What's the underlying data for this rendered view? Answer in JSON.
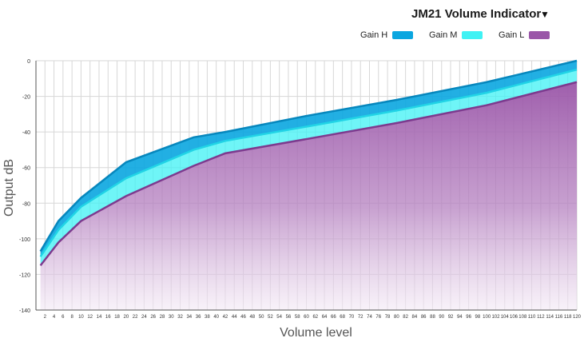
{
  "chart_data": {
    "type": "area",
    "title": "JM21 Volume Indicator",
    "xlabel": "Volume level",
    "ylabel": "Output dB",
    "xlim": [
      0,
      120
    ],
    "ylim": [
      -140,
      0
    ],
    "x_ticks": [
      2,
      4,
      6,
      8,
      10,
      12,
      14,
      16,
      18,
      20,
      22,
      24,
      26,
      28,
      30,
      32,
      34,
      36,
      38,
      40,
      42,
      44,
      46,
      48,
      50,
      52,
      54,
      56,
      58,
      60,
      62,
      64,
      66,
      68,
      70,
      72,
      74,
      76,
      78,
      80,
      82,
      84,
      86,
      88,
      90,
      92,
      94,
      96,
      98,
      100,
      102,
      104,
      106,
      108,
      110,
      112,
      114,
      116,
      118,
      120
    ],
    "y_ticks": [
      0,
      -20,
      -40,
      -60,
      -80,
      -100,
      -120,
      -140
    ],
    "grid": true,
    "legend_position": "top-right",
    "x": [
      1,
      5,
      10,
      20,
      35,
      42,
      60,
      80,
      100,
      120
    ],
    "series": [
      {
        "name": "Gain H",
        "color": "#0aa6e0",
        "values": [
          -107,
          -90,
          -77,
          -57,
          -43,
          -40,
          -31,
          -22,
          -12,
          0
        ]
      },
      {
        "name": "Gain M",
        "color": "#3ff2f4",
        "values": [
          -110,
          -95,
          -82,
          -66,
          -50,
          -45,
          -37,
          -28,
          -18,
          -5
        ]
      },
      {
        "name": "Gain L",
        "color": "#9a56a8",
        "values": [
          -115,
          -102,
          -90,
          -76,
          -59,
          -52,
          -44,
          -35,
          -25,
          -12
        ]
      }
    ]
  }
}
